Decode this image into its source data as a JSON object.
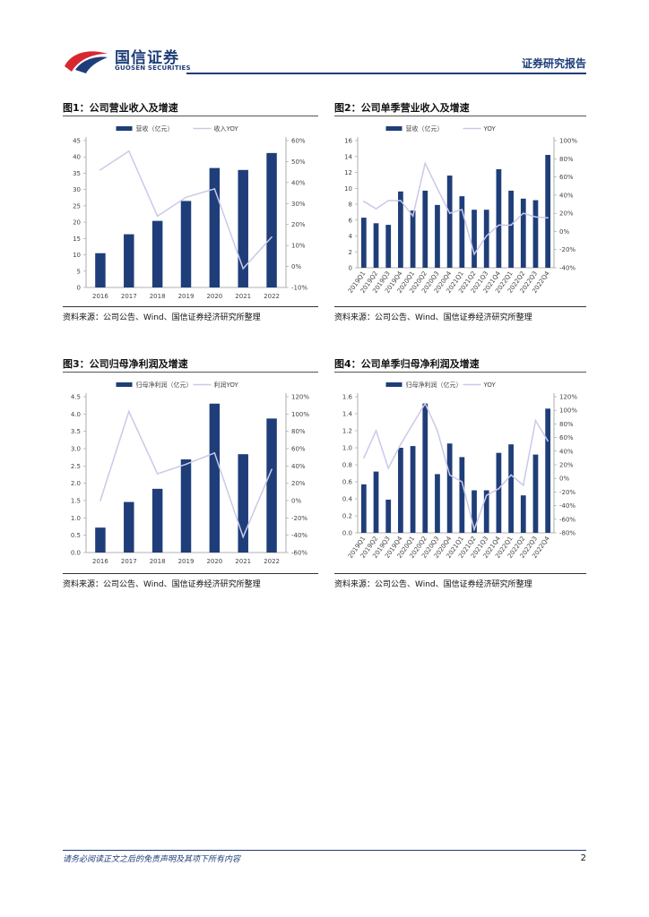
{
  "header": {
    "company_cn": "国信证券",
    "company_en": "GUOSEN SECURITIES",
    "report_type": "证券研究报告"
  },
  "colors": {
    "bar": "#1f3e79",
    "line": "#c9c9ea",
    "brand_red": "#d8282f",
    "brand_blue": "#1f3e79"
  },
  "footer": {
    "disclaimer": "请务必阅读正文之后的免责声明及其项下所有内容",
    "page": "2"
  },
  "chart_data": [
    {
      "type": "bar",
      "title": "图1：公司营业收入及增速",
      "source": "资料来源：公司公告、Wind、国信证券经济研究所整理",
      "categories": [
        "2016",
        "2017",
        "2018",
        "2019",
        "2020",
        "2021",
        "2022"
      ],
      "series": [
        {
          "name": "营收（亿元）",
          "kind": "bar",
          "axis": "left",
          "values": [
            10.5,
            16.3,
            20.4,
            26.5,
            36.6,
            36.0,
            41.2
          ]
        },
        {
          "name": "收入YOY",
          "kind": "line",
          "axis": "right",
          "values": [
            0.46,
            0.55,
            0.24,
            0.33,
            0.37,
            -0.01,
            0.14
          ]
        }
      ],
      "ylim": [
        0,
        45
      ],
      "yticks": [
        0,
        5,
        10,
        15,
        20,
        25,
        30,
        35,
        40,
        45
      ],
      "y2lim": [
        -0.1,
        0.6
      ],
      "y2ticks": [
        -0.1,
        0,
        0.1,
        0.2,
        0.3,
        0.4,
        0.5,
        0.6
      ],
      "y2tick_labels": [
        "-10%",
        "0%",
        "10%",
        "20%",
        "30%",
        "40%",
        "50%",
        "60%"
      ],
      "xtick_rotate": false,
      "legend": "top"
    },
    {
      "type": "bar",
      "title": "图2：公司单季营业收入及增速",
      "source": "资料来源：公司公告、Wind、国信证券经济研究所整理",
      "categories": [
        "2019Q1",
        "2019Q2",
        "2019Q3",
        "2019Q4",
        "2020Q1",
        "2020Q2",
        "2020Q3",
        "2020Q4",
        "2021Q1",
        "2021Q2",
        "2021Q3",
        "2021Q4",
        "2022Q1",
        "2022Q2",
        "2022Q3",
        "2022Q4"
      ],
      "series": [
        {
          "name": "营收（亿元）",
          "kind": "bar",
          "axis": "left",
          "values": [
            6.3,
            5.6,
            5.4,
            9.6,
            7.2,
            9.7,
            7.9,
            11.6,
            9.0,
            7.3,
            7.3,
            12.4,
            9.7,
            8.7,
            8.5,
            14.2
          ]
        },
        {
          "name": "YOY",
          "kind": "line",
          "axis": "right",
          "values": [
            0.33,
            0.25,
            0.34,
            0.34,
            0.17,
            0.75,
            0.47,
            0.2,
            0.24,
            -0.25,
            -0.05,
            0.07,
            0.07,
            0.2,
            0.16,
            0.15
          ]
        }
      ],
      "ylim": [
        0,
        16
      ],
      "yticks": [
        0,
        2,
        4,
        6,
        8,
        10,
        12,
        14,
        16
      ],
      "y2lim": [
        -0.4,
        1.0
      ],
      "y2ticks": [
        -0.4,
        -0.2,
        0,
        0.2,
        0.4,
        0.6,
        0.8,
        1.0
      ],
      "y2tick_labels": [
        "-40%",
        "-20%",
        "0%",
        "20%",
        "40%",
        "60%",
        "80%",
        "100%"
      ],
      "xtick_rotate": true,
      "legend": "top"
    },
    {
      "type": "bar",
      "title": "图3：公司归母净利润及增速",
      "source": "资料来源：公司公告、Wind、国信证券经济研究所整理",
      "categories": [
        "2016",
        "2017",
        "2018",
        "2019",
        "2020",
        "2021",
        "2022"
      ],
      "series": [
        {
          "name": "归母净利润（亿元）",
          "kind": "bar",
          "axis": "left",
          "values": [
            0.72,
            1.46,
            1.84,
            2.69,
            4.3,
            2.84,
            3.87
          ]
        },
        {
          "name": "利润YOY",
          "kind": "line",
          "axis": "right",
          "values": [
            0.0,
            1.03,
            0.31,
            0.42,
            0.55,
            -0.42,
            0.36
          ]
        }
      ],
      "ylim": [
        0,
        4.5
      ],
      "yticks": [
        0.0,
        0.5,
        1.0,
        1.5,
        2.0,
        2.5,
        3.0,
        3.5,
        4.0,
        4.5
      ],
      "ytick_labels": [
        "0.0",
        "0.5",
        "1.0",
        "1.5",
        "2.0",
        "2.5",
        "3.0",
        "3.5",
        "4.0",
        "4.5"
      ],
      "y2lim": [
        -0.6,
        1.2
      ],
      "y2ticks": [
        -0.6,
        -0.4,
        -0.2,
        0,
        0.2,
        0.4,
        0.6,
        0.8,
        1.0,
        1.2
      ],
      "y2tick_labels": [
        "-60%",
        "-40%",
        "-20%",
        "0%",
        "20%",
        "40%",
        "60%",
        "80%",
        "100%",
        "120%"
      ],
      "xtick_rotate": false,
      "legend": "top"
    },
    {
      "type": "bar",
      "title": "图4：公司单季归母净利润及增速",
      "source": "资料来源：公司公告、Wind、国信证券经济研究所整理",
      "categories": [
        "2019Q1",
        "2019Q2",
        "2019Q3",
        "2019Q4",
        "2020Q1",
        "2020Q2",
        "2020Q3",
        "2020Q4",
        "2021Q1",
        "2021Q2",
        "2021Q3",
        "2021Q4",
        "2022Q1",
        "2022Q2",
        "2022Q3",
        "2022Q4"
      ],
      "series": [
        {
          "name": "归母净利润（亿元）",
          "kind": "bar",
          "axis": "left",
          "values": [
            0.57,
            0.72,
            0.39,
            1.0,
            1.02,
            1.52,
            0.69,
            1.05,
            0.89,
            0.5,
            0.5,
            0.94,
            1.04,
            0.44,
            0.92,
            1.46
          ]
        },
        {
          "name": "YOY",
          "kind": "line",
          "axis": "right",
          "values": [
            0.3,
            0.7,
            0.15,
            0.5,
            0.8,
            1.1,
            0.7,
            0.05,
            -0.05,
            -0.75,
            -0.25,
            -0.15,
            0.05,
            -0.1,
            0.85,
            0.55
          ]
        }
      ],
      "ylim": [
        0,
        1.6
      ],
      "yticks": [
        0,
        0.2,
        0.4,
        0.6,
        0.8,
        1.0,
        1.2,
        1.4,
        1.6
      ],
      "ytick_labels": [
        "0.0",
        "0.2",
        "0.4",
        "0.6",
        "0.8",
        "1.0",
        "1.2",
        "1.4",
        "1.6"
      ],
      "y2lim": [
        -0.8,
        1.2
      ],
      "y2ticks": [
        -0.8,
        -0.6,
        -0.4,
        -0.2,
        0,
        0.2,
        0.4,
        0.6,
        0.8,
        1.0,
        1.2
      ],
      "y2tick_labels": [
        "-80%",
        "-60%",
        "-40%",
        "-20%",
        "0%",
        "20%",
        "40%",
        "60%",
        "80%",
        "100%",
        "120%"
      ],
      "xtick_rotate": true,
      "legend": "top"
    }
  ]
}
